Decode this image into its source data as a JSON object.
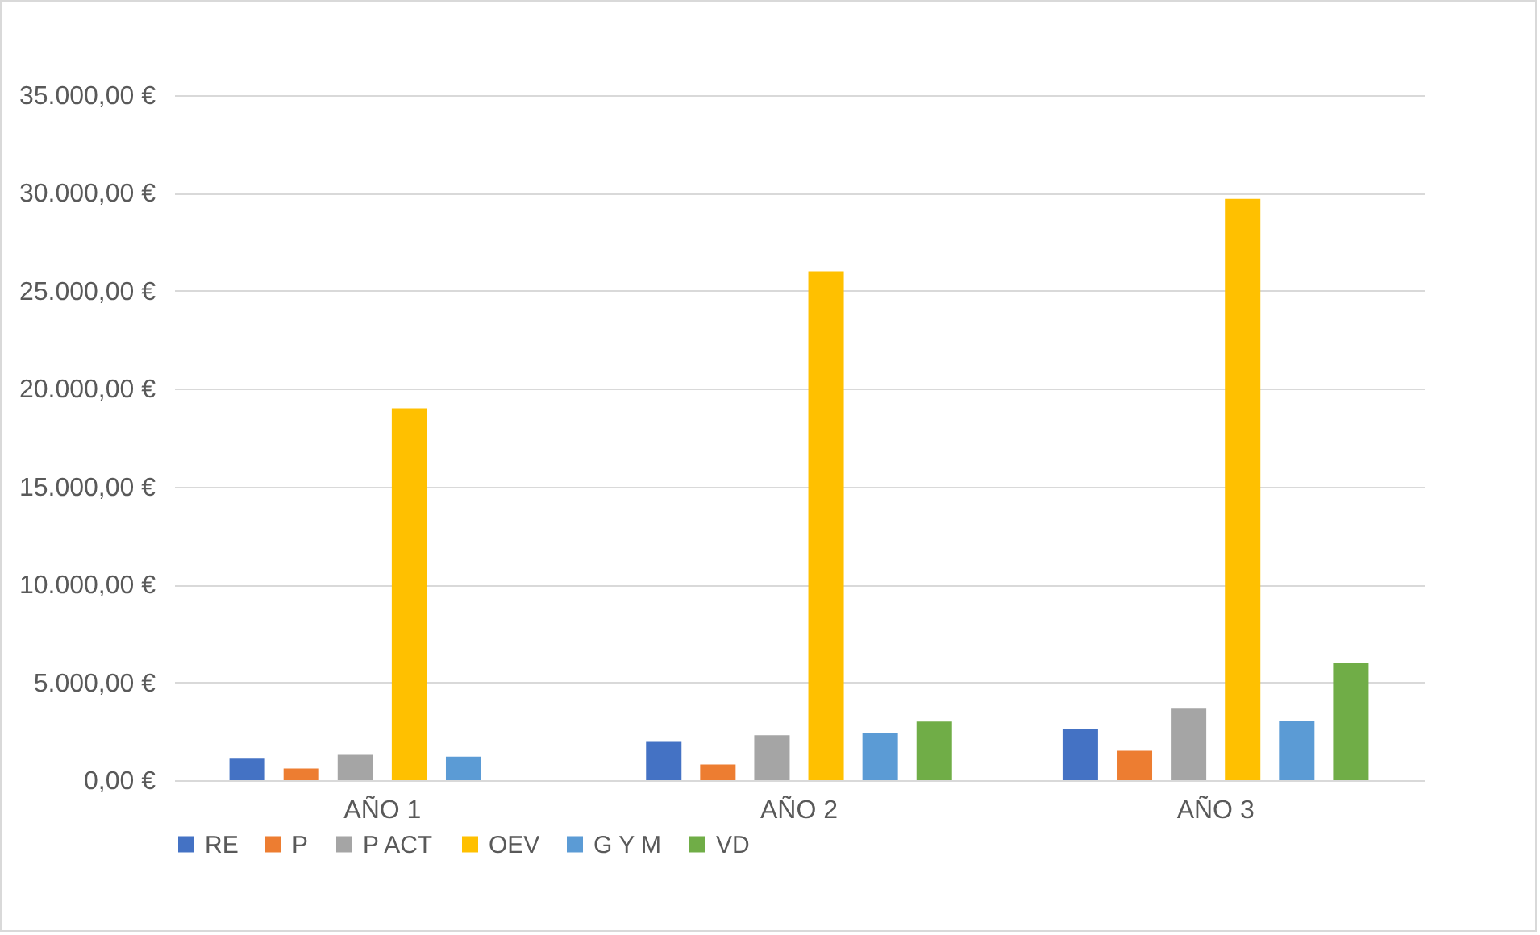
{
  "chart_data": {
    "type": "bar",
    "categories": [
      "AÑO 1",
      "AÑO 2",
      "AÑO 3"
    ],
    "series": [
      {
        "name": "RE",
        "color": "#4472c4",
        "values": [
          1100,
          2000,
          2600
        ]
      },
      {
        "name": "P",
        "color": "#ed7d31",
        "values": [
          600,
          800,
          1500
        ]
      },
      {
        "name": "P ACT",
        "color": "#a5a5a5",
        "values": [
          1300,
          2300,
          3700
        ]
      },
      {
        "name": "OEV",
        "color": "#ffc000",
        "values": [
          19000,
          26000,
          29700
        ]
      },
      {
        "name": "G Y M",
        "color": "#5b9bd5",
        "values": [
          1200,
          2400,
          3050
        ]
      },
      {
        "name": "VD",
        "color": "#70ad47",
        "values": [
          null,
          3000,
          6000
        ]
      }
    ],
    "ylim": [
      0,
      35000
    ],
    "yticks": [
      {
        "value": 0,
        "label": "0,00 €"
      },
      {
        "value": 5000,
        "label": "5.000,00 €"
      },
      {
        "value": 10000,
        "label": "10.000,00 €"
      },
      {
        "value": 15000,
        "label": "15.000,00 €"
      },
      {
        "value": 20000,
        "label": "20.000,00 €"
      },
      {
        "value": 25000,
        "label": "25.000,00 €"
      },
      {
        "value": 30000,
        "label": "30.000,00 €"
      },
      {
        "value": 35000,
        "label": "35.000,00 €"
      }
    ],
    "grid": "y",
    "legend": "bottom"
  }
}
